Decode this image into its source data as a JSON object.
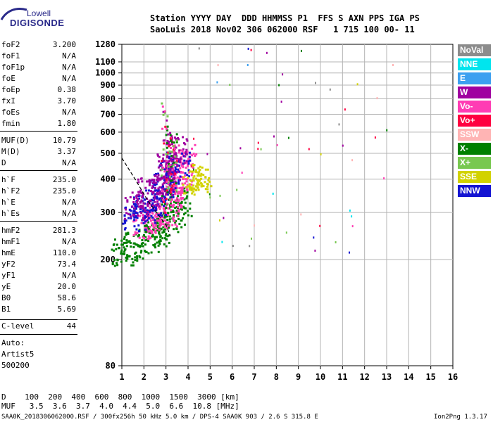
{
  "logo": {
    "top": "Lowell",
    "bottom": "DIGISONDE"
  },
  "header": {
    "line1": "Station YYYY DAY  DDD HHMMSS P1  FFS S AXN PPS IGA PS",
    "line2": "SaoLuis 2018 Nov02 306 062000 RSF   1 715 100 00- 11"
  },
  "params": [
    {
      "name": "foF2",
      "value": "3.200"
    },
    {
      "name": "foF1",
      "value": "N/A"
    },
    {
      "name": "foF1p",
      "value": "N/A"
    },
    {
      "name": "foE",
      "value": "N/A"
    },
    {
      "name": "foEp",
      "value": "0.38"
    },
    {
      "name": "fxI",
      "value": "3.70"
    },
    {
      "name": "foEs",
      "value": "N/A"
    },
    {
      "name": "fmin",
      "value": "1.80"
    },
    {
      "name": "MUF(D)",
      "value": "10.79"
    },
    {
      "name": "M(D)",
      "value": "3.37"
    },
    {
      "name": "D",
      "value": "N/A"
    },
    {
      "name": "h`F",
      "value": "235.0"
    },
    {
      "name": "h`F2",
      "value": "235.0"
    },
    {
      "name": "h`E",
      "value": "N/A"
    },
    {
      "name": "h`Es",
      "value": "N/A"
    },
    {
      "name": "hmF2",
      "value": "281.3"
    },
    {
      "name": "hmF1",
      "value": "N/A"
    },
    {
      "name": "hmE",
      "value": "110.0"
    },
    {
      "name": "yF2",
      "value": "73.4"
    },
    {
      "name": "yF1",
      "value": "N/A"
    },
    {
      "name": "yE",
      "value": "20.0"
    },
    {
      "name": "B0",
      "value": "58.6"
    },
    {
      "name": "B1",
      "value": "5.69"
    }
  ],
  "clevel": {
    "name": "C-level",
    "value": "44"
  },
  "auto": {
    "line1": "Auto:",
    "line2": "Artist5",
    "line3": "500200"
  },
  "legend": [
    {
      "label": "NoVal",
      "color": "#8c8c8c"
    },
    {
      "label": "NNE",
      "color": "#00e5ee"
    },
    {
      "label": "E",
      "color": "#3ca0f0"
    },
    {
      "label": "W",
      "color": "#a000a0"
    },
    {
      "label": "Vo-",
      "color": "#ff3cb4"
    },
    {
      "label": "Vo+",
      "color": "#ff0040"
    },
    {
      "label": "SSW",
      "color": "#ffb4b4"
    },
    {
      "label": "X-",
      "color": "#008000"
    },
    {
      "label": "X+",
      "color": "#78c850"
    },
    {
      "label": "SSE",
      "color": "#d2d200"
    },
    {
      "label": "NNW",
      "color": "#1414d2"
    }
  ],
  "bottom": {
    "line1": "D    100  200  400  600  800  1000  1500  3000 [km]",
    "line2": "MUF   3.5  3.6  3.7  4.0  4.4  5.0  6.6  10.8 [MHz]"
  },
  "footer": {
    "left": "SAA0K_2018306062000.RSF / 300fx256h 50 kHz 5.0 km / DPS-4 SAA0K 903 / 2.6 S 315.8 E",
    "right": "Ion2Png 1.3.17"
  },
  "chart_data": {
    "type": "scatter",
    "title": "",
    "xlabel": "",
    "ylabel": "",
    "xlim": [
      1,
      16
    ],
    "ylim": [
      80,
      1280
    ],
    "y_scale": "log",
    "x_ticks": [
      1,
      2,
      3,
      4,
      5,
      6,
      7,
      8,
      9,
      10,
      11,
      12,
      13,
      14,
      15,
      16
    ],
    "y_ticks": [
      80,
      200,
      300,
      400,
      500,
      600,
      700,
      800,
      900,
      1000,
      1100,
      1280
    ],
    "grid": true,
    "legend_position": "right",
    "clusters": [
      {
        "series": "X-",
        "x": [
          1.0,
          1.6,
          2.2,
          2.6,
          3.0,
          3.3,
          3.6
        ],
        "y": [
          215,
          225,
          240,
          255,
          275,
          300,
          330
        ]
      },
      {
        "series": "Vo-",
        "x": [
          2.0,
          2.5,
          3.0,
          3.2,
          3.4,
          3.6,
          3.8
        ],
        "y": [
          270,
          290,
          300,
          340,
          380,
          420,
          480
        ]
      },
      {
        "series": "NNW",
        "x": [
          1.5,
          2.0,
          2.5,
          2.8,
          3.2,
          3.5
        ],
        "y": [
          290,
          310,
          330,
          380,
          420,
          450
        ]
      },
      {
        "series": "W",
        "x": [
          1.6,
          2.2,
          2.8,
          3.1,
          3.4
        ],
        "y": [
          320,
          360,
          400,
          450,
          520
        ]
      },
      {
        "series": "SSE",
        "x": [
          4.1,
          4.3,
          4.5,
          4.7
        ],
        "y": [
          380,
          400,
          420,
          390
        ]
      }
    ],
    "trace": {
      "x": [
        1.0,
        1.6,
        2.2,
        2.7,
        3.0,
        3.2
      ],
      "y": [
        480,
        400,
        330,
        290,
        270,
        245
      ]
    }
  }
}
